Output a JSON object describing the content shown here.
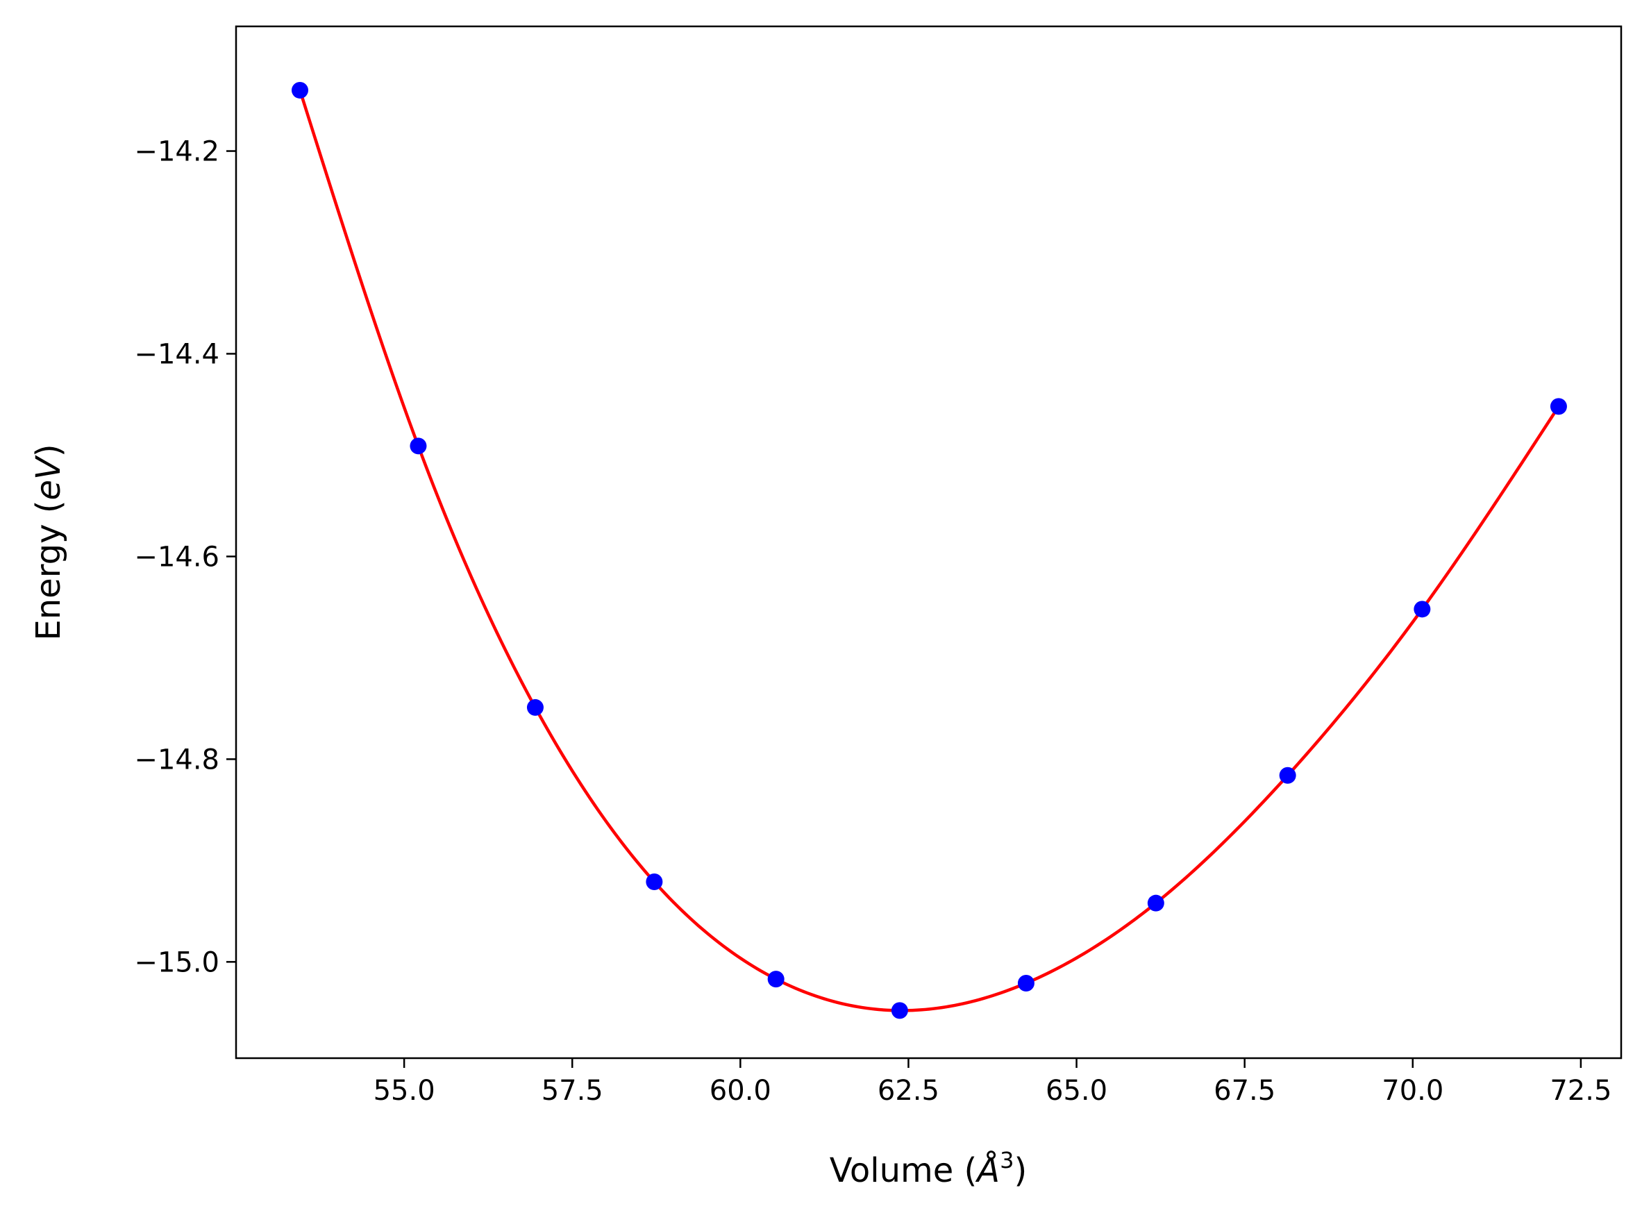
{
  "chart_data": {
    "type": "scatter",
    "title": "",
    "xlabel": "Volume",
    "xlabel_unit_base": "Å",
    "xlabel_unit_exp": "3",
    "ylabel": "Energy",
    "ylabel_unit": "eV",
    "xlim": [
      52.5,
      73.1
    ],
    "ylim": [
      -15.095,
      -14.077
    ],
    "xticks": [
      55.0,
      57.5,
      60.0,
      62.5,
      65.0,
      67.5,
      70.0,
      72.5
    ],
    "xtick_labels": [
      "55.0",
      "57.5",
      "60.0",
      "62.5",
      "65.0",
      "67.5",
      "70.0",
      "72.5"
    ],
    "yticks": [
      -14.2,
      -14.4,
      -14.6,
      -14.8,
      -15.0
    ],
    "ytick_labels": [
      "−14.2",
      "−14.4",
      "−14.6",
      "−14.8",
      "−15.0"
    ],
    "grid": false,
    "points": {
      "color": "#0000ff",
      "x": [
        53.45,
        55.21,
        56.95,
        58.72,
        60.53,
        62.37,
        64.25,
        66.18,
        68.14,
        70.14,
        72.17
      ],
      "y": [
        -14.14,
        -14.491,
        -14.749,
        -14.921,
        -15.017,
        -15.048,
        -15.021,
        -14.942,
        -14.816,
        -14.652,
        -14.452
      ]
    },
    "fit": {
      "color": "#ff0000"
    }
  }
}
